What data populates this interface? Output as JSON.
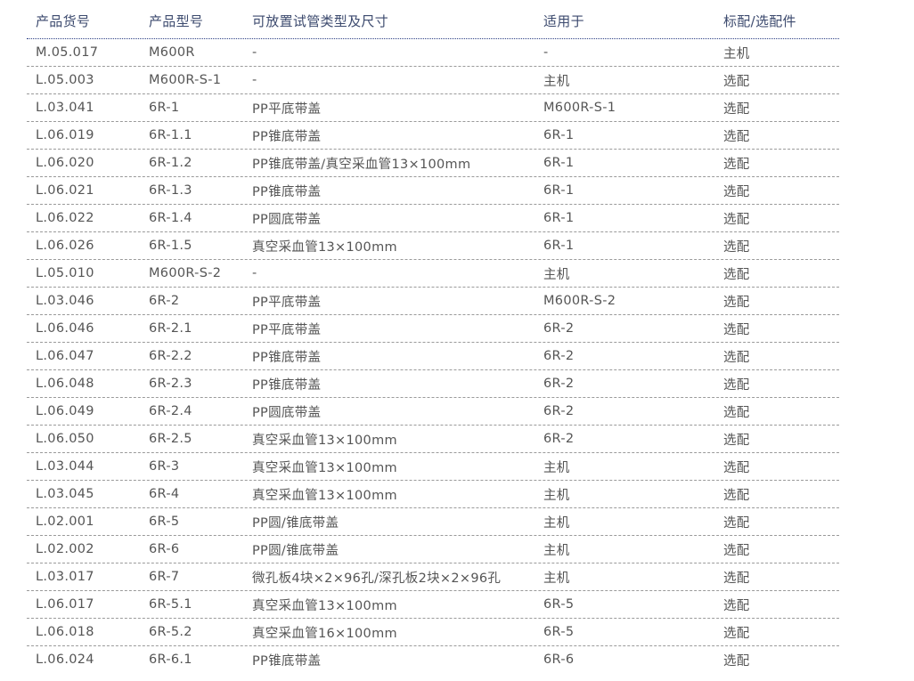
{
  "headers": [
    "产品货号",
    "产品型号",
    "可放置试管类型及尺寸",
    "适用于",
    "标配/选配件"
  ],
  "rows": [
    [
      "M.05.017",
      "M600R",
      "-",
      "-",
      "主机"
    ],
    [
      "L.05.003",
      "M600R-S-1",
      "-",
      "主机",
      "选配"
    ],
    [
      "L.03.041",
      "6R-1",
      "PP平底带盖",
      "M600R-S-1",
      "选配"
    ],
    [
      "L.06.019",
      "6R-1.1",
      "PP锥底带盖",
      "6R-1",
      "选配"
    ],
    [
      "L.06.020",
      "6R-1.2",
      "PP锥底带盖/真空采血管13×100mm",
      "6R-1",
      "选配"
    ],
    [
      "L.06.021",
      "6R-1.3",
      "PP锥底带盖",
      "6R-1",
      "选配"
    ],
    [
      "L.06.022",
      "6R-1.4",
      "PP圆底带盖",
      "6R-1",
      "选配"
    ],
    [
      "L.06.026",
      "6R-1.5",
      "真空采血管13×100mm",
      "6R-1",
      "选配"
    ],
    [
      "L.05.010",
      "M600R-S-2",
      "-",
      "主机",
      "选配"
    ],
    [
      "L.03.046",
      "6R-2",
      "PP平底带盖",
      "M600R-S-2",
      "选配"
    ],
    [
      "L.06.046",
      "6R-2.1",
      "PP平底带盖",
      "6R-2",
      "选配"
    ],
    [
      "L.06.047",
      "6R-2.2",
      "PP锥底带盖",
      "6R-2",
      "选配"
    ],
    [
      "L.06.048",
      "6R-2.3",
      "PP锥底带盖",
      "6R-2",
      "选配"
    ],
    [
      "L.06.049",
      "6R-2.4",
      "PP圆底带盖",
      "6R-2",
      "选配"
    ],
    [
      "L.06.050",
      "6R-2.5",
      "真空采血管13×100mm",
      "6R-2",
      "选配"
    ],
    [
      "L.03.044",
      "6R-3",
      "真空采血管13×100mm",
      "主机",
      "选配"
    ],
    [
      "L.03.045",
      "6R-4",
      "真空采血管13×100mm",
      "主机",
      "选配"
    ],
    [
      "L.02.001",
      "6R-5",
      "PP圆/锥底带盖",
      "主机",
      "选配"
    ],
    [
      "L.02.002",
      "6R-6",
      "PP圆/锥底带盖",
      "主机",
      "选配"
    ],
    [
      "L.03.017",
      "6R-7",
      "微孔板4块×2×96孔/深孔板2块×2×96孔",
      "主机",
      "选配"
    ],
    [
      "L.06.017",
      "6R-5.1",
      "真空采血管13×100mm",
      "6R-5",
      "选配"
    ],
    [
      "L.06.018",
      "6R-5.2",
      "真空采血管16×100mm",
      "6R-5",
      "选配"
    ],
    [
      "L.06.024",
      "6R-6.1",
      "PP锥底带盖",
      "6R-6",
      "选配"
    ]
  ]
}
